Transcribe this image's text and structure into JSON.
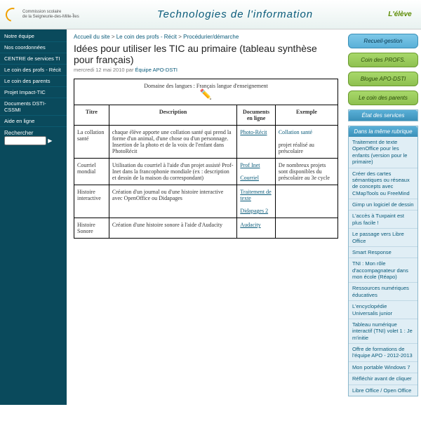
{
  "header": {
    "commission_line1": "Commission scolaire",
    "commission_line2": "de la Seigneurie-des-Mille-Îles",
    "banner": "Technologies de l'information",
    "eleve_logo": "L'élève"
  },
  "leftnav": {
    "items": [
      "Notre équipe",
      "Nos coordonnées",
      "CENTRE de services TI",
      "Le coin des profs - Récit",
      "Le coin des parents",
      "Projet Impact-TIC",
      "Documents DSTI-CSSMI",
      "Aide en ligne"
    ],
    "search_label": "Rechercher",
    "search_placeholder": ""
  },
  "breadcrumb": {
    "home": "Accueil du site",
    "sep": " > ",
    "c1": "Le coin des profs - Récit",
    "c2": "Procédurier/démarche"
  },
  "article": {
    "title": "Idées pour utiliser les TIC au primaire (tableau synthèse pour français)",
    "date": "mercredi 12 mai 2010 par ",
    "author": "Équipe APO-DSTI"
  },
  "table": {
    "caption": "Domaine des langues : Français langue d'enseignement",
    "columns": [
      "Titre",
      "Description",
      "Documents en ligne",
      "Exemple"
    ],
    "rows": [
      {
        "titre": "La collation santé",
        "desc": "chaque élève apporte une collation santé qui prend la forme d'un animal, d'une chose ou d'un personnage. Insertion de la photo et de la voix de l'enfant dans PhotoRécit",
        "docs": [
          "Photo-Récit"
        ],
        "exemple_link": "Collation santé",
        "exemple_note": "projet réalisé au préscolaire"
      },
      {
        "titre": "Courriel mondial",
        "desc": "Utilisation du courriel à l'aide d'un projet assisté Prof-Inet dans la francophonie mondiale (ex : description et dessin de la maison du correspondant)",
        "docs": [
          "Prof Inet",
          "Courriel"
        ],
        "exemple_note": "De nombreux projets sont disponibles du préscolaire au 3e cycle"
      },
      {
        "titre": "Histoire interactive",
        "desc": "Création d'un journal ou d'une histoire interactive avec OpenOffice ou Didapages",
        "docs": [
          "Traitement de texte",
          "Didapages 2"
        ]
      },
      {
        "titre": "Histoire Sonore",
        "desc": "Création d'une histoire sonore à l'aide d'Audacity",
        "docs": [
          "Audacity"
        ]
      }
    ]
  },
  "rightbuttons": [
    {
      "label": "Recueil-gestion",
      "style": "rblue"
    },
    {
      "label": "Coin des PROFS.",
      "style": ""
    },
    {
      "label": "Blogue APO-DSTI",
      "style": ""
    },
    {
      "label": "Le coin des parents",
      "style": ""
    }
  ],
  "right_sections": [
    {
      "head": "État des services",
      "items": []
    },
    {
      "head": "Dans la même rubrique",
      "items": [
        "Traitement de texte OpenOffice pour les enfants (version pour le primaire)",
        "Créer des cartes sémantiques ou réseaux de concepts avec CMapTools ou FreeMind",
        "Gimp un logiciel de dessin",
        "L'accès à Tuxpaint est plus facile !",
        "Le passage vers Libre Office",
        "Smart Response",
        "TNI : Mon rôle d'accompagnateur dans mon école (Réapo)",
        "Ressources numériques éducatives",
        "L'encyclopédie Universalis junior",
        "Tableau numérique interactif (TNI) volet 1 : Je m'initie",
        "Offre de formations de l'équipe APO - 2012-2013",
        "Mon portable Windows 7",
        "Réfléchir avant de cliquer",
        "Libre Office / Open Office"
      ]
    }
  ]
}
